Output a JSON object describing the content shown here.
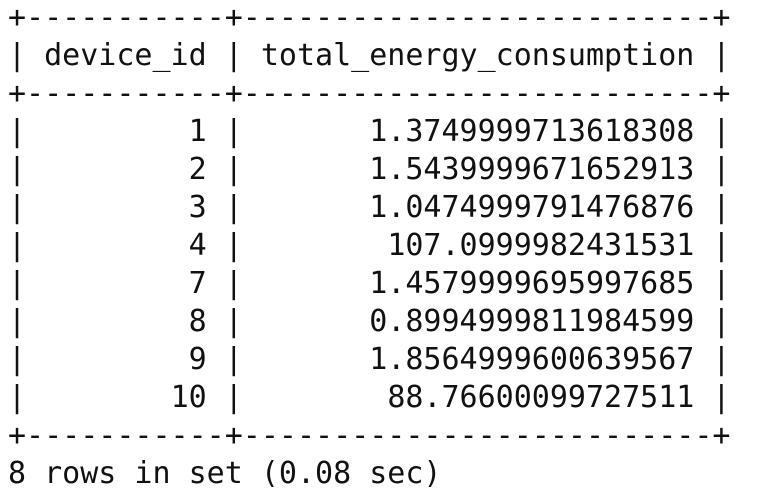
{
  "table": {
    "columns": [
      "device_id",
      "total_energy_consumption"
    ],
    "rows": [
      [
        "1",
        "1.3749999713618308"
      ],
      [
        "2",
        "1.5439999671652913"
      ],
      [
        "3",
        "1.0474999791476876"
      ],
      [
        "4",
        "107.0999982431531"
      ],
      [
        "7",
        "1.4579999695997685"
      ],
      [
        "8",
        "0.8994999811984599"
      ],
      [
        "9",
        "1.8564999600639567"
      ],
      [
        "10",
        "88.76600099727511"
      ]
    ]
  },
  "footer": "8 rows in set (0.08 sec)"
}
